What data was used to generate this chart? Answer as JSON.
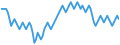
{
  "values": [
    8,
    8,
    8,
    8,
    6,
    2,
    -2,
    0,
    2,
    0,
    -2,
    -4,
    -2,
    0,
    -2,
    -4,
    -2,
    0,
    -2,
    -6,
    -12,
    -10,
    -6,
    -8,
    -10,
    -8,
    -4,
    -2,
    0,
    -2,
    -4,
    -2,
    0,
    2,
    4,
    6,
    8,
    10,
    8,
    6,
    8,
    10,
    12,
    10,
    8,
    10,
    12,
    10,
    8,
    10,
    8,
    6,
    8,
    10,
    8,
    4,
    0,
    -2,
    0,
    2,
    4,
    2,
    0,
    2,
    4,
    2,
    0,
    -2,
    0,
    2,
    4,
    2
  ],
  "line_color": "#3c9de0",
  "linewidth": 1.3,
  "background_color": "#ffffff"
}
